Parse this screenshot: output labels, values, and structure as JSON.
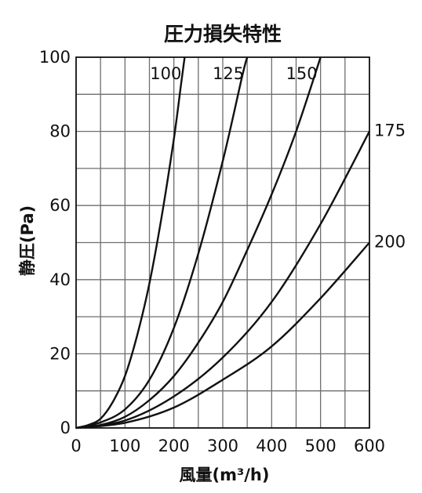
{
  "chart_data": {
    "type": "line",
    "title": "圧力損失特性",
    "xlabel": "風量(m³/h)",
    "ylabel": "静圧(Pa)",
    "xlim": [
      0,
      600
    ],
    "ylim": [
      0,
      100
    ],
    "x_ticks": [
      "0",
      "100",
      "200",
      "300",
      "400",
      "500",
      "600"
    ],
    "y_ticks": [
      "0",
      "20",
      "40",
      "60",
      "80",
      "100"
    ],
    "grid": true,
    "series": [
      {
        "name": "100",
        "x": [
          0,
          25,
          50,
          75,
          100,
          125,
          150,
          175,
          200,
          215,
          222
        ],
        "y": [
          0,
          0.8,
          2.5,
          7,
          14,
          25,
          39,
          57,
          78,
          93,
          100
        ]
      },
      {
        "name": "125",
        "x": [
          0,
          50,
          100,
          150,
          200,
          250,
          300,
          340,
          350
        ],
        "y": [
          0,
          1.5,
          5,
          13,
          27,
          47,
          72,
          95,
          100
        ]
      },
      {
        "name": "150",
        "x": [
          0,
          50,
          100,
          150,
          200,
          250,
          300,
          350,
          400,
          450,
          500
        ],
        "y": [
          0,
          0.8,
          3,
          7.5,
          14,
          23,
          34,
          48,
          63,
          80,
          100
        ]
      },
      {
        "name": "175",
        "x": [
          0,
          100,
          200,
          300,
          400,
          500,
          600
        ],
        "y": [
          0,
          2,
          8.5,
          19,
          34,
          55,
          80
        ]
      },
      {
        "name": "200",
        "x": [
          0,
          100,
          200,
          300,
          400,
          500,
          600
        ],
        "y": [
          0,
          1.4,
          5.5,
          13,
          22,
          35,
          50
        ]
      }
    ]
  }
}
